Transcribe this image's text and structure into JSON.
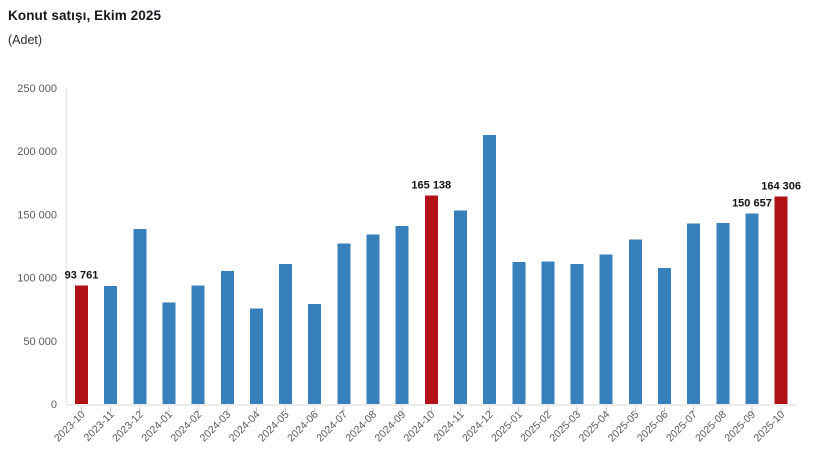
{
  "header": {
    "title": "Konut satışı, Ekim 2025",
    "subtitle": "(Adet)"
  },
  "chart_data": {
    "type": "bar",
    "title": "Konut satışı, Ekim 2025",
    "subtitle": "(Adet)",
    "xlabel": "",
    "ylabel": "Adet",
    "ylim": [
      0,
      250000
    ],
    "grid": false,
    "legend": false,
    "categories": [
      "2023-10",
      "2023-11",
      "2023-12",
      "2024-01",
      "2024-02",
      "2024-03",
      "2024-04",
      "2024-05",
      "2024-06",
      "2024-07",
      "2024-08",
      "2024-09",
      "2024-10",
      "2024-11",
      "2024-12",
      "2025-01",
      "2025-02",
      "2025-03",
      "2025-04",
      "2025-05",
      "2025-06",
      "2025-07",
      "2025-08",
      "2025-09",
      "2025-10"
    ],
    "values": [
      93761,
      93514,
      138577,
      80308,
      93902,
      105394,
      75569,
      110588,
      79313,
      127088,
      134155,
      140919,
      165138,
      153014,
      212637,
      112173,
      112818,
      110795,
      118359,
      130025,
      107723,
      142858,
      143319,
      150657,
      164306
    ],
    "highlighted_indices": [
      0,
      12,
      24
    ],
    "value_labels": {
      "0": "93 761",
      "12": "165 138",
      "23": "150 657",
      "24": "164 306"
    },
    "y_ticks": [
      0,
      50000,
      100000,
      150000,
      200000,
      250000
    ],
    "y_tick_labels": [
      "0",
      "50 000",
      "100 000",
      "150 000",
      "200 000",
      "250 000"
    ],
    "colors": {
      "bar": "#3780BC",
      "highlight": "#B01217",
      "axis_line": "#e7e7e7",
      "tick_mark": "#bdbdbd",
      "axis_label": "#595959",
      "data_label": "#111111"
    }
  }
}
